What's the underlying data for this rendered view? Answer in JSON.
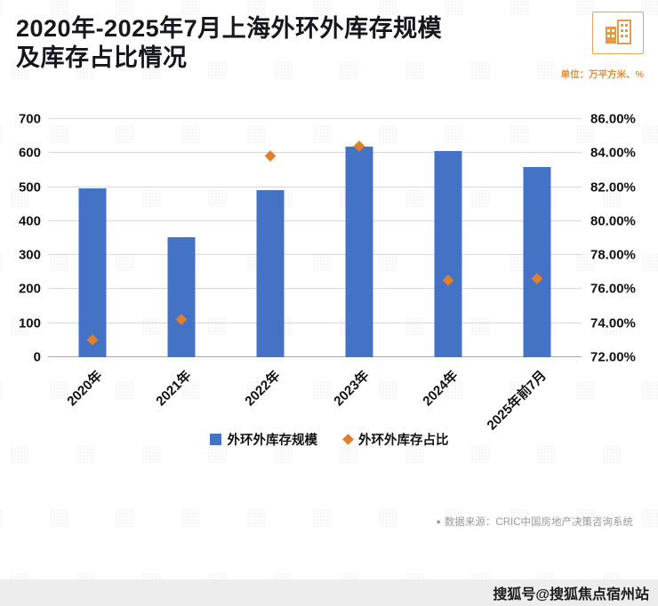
{
  "header": {
    "title_line1": "2020年-2025年7月上海外环外库存规模",
    "title_line2": "及库存占比情况",
    "unit": "单位：万平方米、%"
  },
  "chart_data": {
    "type": "bar",
    "categories": [
      "2020年",
      "2021年",
      "2022年",
      "2023年",
      "2024年",
      "2025年前7月"
    ],
    "series": [
      {
        "name": "外环外库存规模",
        "type": "bar",
        "values": [
          497,
          352,
          490,
          620,
          605,
          560
        ]
      },
      {
        "name": "外环外库存占比",
        "type": "scatter",
        "values": [
          73.0,
          74.2,
          83.8,
          84.4,
          76.5,
          76.6
        ]
      }
    ],
    "left_axis": {
      "min": 0,
      "max": 700,
      "ticks": [
        "0",
        "100",
        "200",
        "300",
        "400",
        "500",
        "600",
        "700"
      ]
    },
    "right_axis": {
      "min": 72,
      "max": 86,
      "ticks": [
        "72.00%",
        "74.00%",
        "76.00%",
        "78.00%",
        "80.00%",
        "82.00%",
        "84.00%",
        "86.00%"
      ]
    },
    "colors": {
      "bar": "#4472c4",
      "marker": "#e07f2c"
    },
    "grid": true,
    "legend_position": "bottom",
    "title": "2020年-2025年7月上海外环外库存规模及库存占比情况",
    "ylabel_left": "万平方米",
    "ylabel_right": "%"
  },
  "legend": {
    "bar_label": "外环外库存规模",
    "ratio_label": "外环外库存占比"
  },
  "footer": {
    "source_bullet": "●",
    "source": "数据来源：CRIC中国房地产决策咨询系统",
    "sohu": "搜狐号@搜狐焦点宿州站"
  },
  "watermark": {
    "glyph": "▦"
  }
}
